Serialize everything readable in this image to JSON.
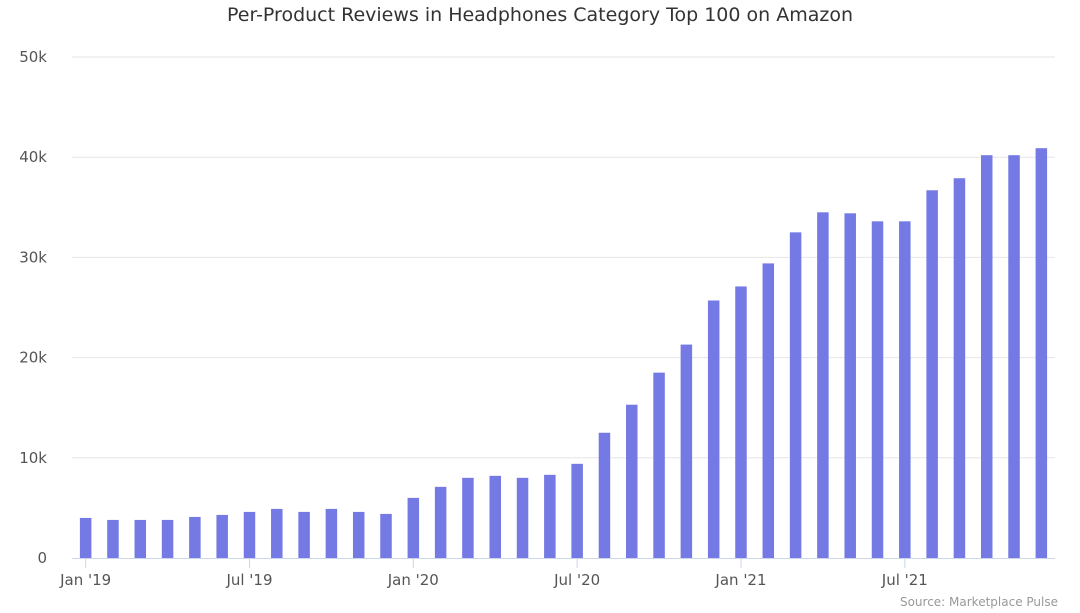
{
  "chart_data": {
    "type": "bar",
    "title": "Per-Product Reviews in Headphones Category Top 100 on Amazon",
    "xlabel": "",
    "ylabel": "",
    "ylim": [
      0,
      50000
    ],
    "y_ticks": [
      {
        "value": 0,
        "label": "0"
      },
      {
        "value": 10000,
        "label": "10k"
      },
      {
        "value": 20000,
        "label": "20k"
      },
      {
        "value": 30000,
        "label": "30k"
      },
      {
        "value": 40000,
        "label": "40k"
      },
      {
        "value": 50000,
        "label": "50k"
      }
    ],
    "categories": [
      "2019-01",
      "2019-02",
      "2019-03",
      "2019-04",
      "2019-05",
      "2019-06",
      "2019-07",
      "2019-08",
      "2019-09",
      "2019-10",
      "2019-11",
      "2019-12",
      "2020-01",
      "2020-02",
      "2020-03",
      "2020-04",
      "2020-05",
      "2020-06",
      "2020-07",
      "2020-08",
      "2020-09",
      "2020-10",
      "2020-11",
      "2020-12",
      "2021-01",
      "2021-02",
      "2021-03",
      "2021-04",
      "2021-05",
      "2021-06",
      "2021-07",
      "2021-08",
      "2021-09",
      "2021-10",
      "2021-11",
      "2021-12"
    ],
    "x_ticks": [
      {
        "category": "2019-01",
        "label": "Jan '19"
      },
      {
        "category": "2019-07",
        "label": "Jul '19"
      },
      {
        "category": "2020-01",
        "label": "Jan '20"
      },
      {
        "category": "2020-07",
        "label": "Jul '20"
      },
      {
        "category": "2021-01",
        "label": "Jan '21"
      },
      {
        "category": "2021-07",
        "label": "Jul '21"
      }
    ],
    "values": [
      4000,
      3800,
      3800,
      3800,
      4100,
      4300,
      4600,
      4900,
      4600,
      4900,
      4600,
      4400,
      6000,
      7100,
      8000,
      8200,
      8000,
      8300,
      9400,
      12500,
      15300,
      18500,
      21300,
      25700,
      27100,
      29400,
      32500,
      34500,
      34400,
      33600,
      33600,
      36700,
      37900,
      40200,
      40200,
      40900
    ],
    "bar_color": "#7479e3",
    "grid": true,
    "grid_color": "#e6e6e6",
    "legend": "none"
  },
  "credit": "Source: Marketplace Pulse"
}
